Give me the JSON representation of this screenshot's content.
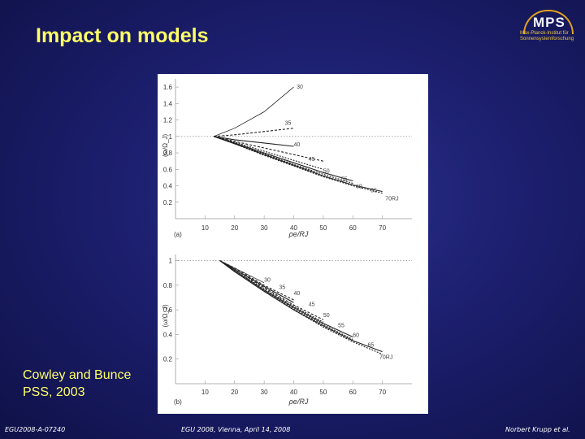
{
  "slide": {
    "title": "Impact on models",
    "caption_line1": "Cowley and Bunce",
    "caption_line2": "PSS, 2003",
    "footer_left": "EGU2008-A-07240",
    "footer_center": "EGU 2008, Vienna, April 14, 2008",
    "footer_right": "Norbert Krupp et al."
  },
  "logo": {
    "name": "MPS",
    "subtitle_line1": "Max-Planck-Institut für",
    "subtitle_line2": "Sonnensystemforschung",
    "ring_color": "#e0a020"
  },
  "chart_data": [
    {
      "type": "line",
      "panel_label": "(a)",
      "ylabel": "(ω/Ω_J)",
      "xlabel": "ρe/RJ",
      "x_ticks": [
        "10",
        "20",
        "30",
        "40",
        "50",
        "60",
        "70"
      ],
      "y_ticks": [
        "0.2",
        "0.4",
        "0.6",
        "0.8",
        "1",
        "1.2",
        "1.4",
        "1.6"
      ],
      "xlim": [
        0,
        80
      ],
      "ylim": [
        0,
        1.7
      ],
      "reference_line": 1,
      "x": [
        13,
        20,
        30,
        40,
        50,
        60,
        70
      ],
      "series": [
        {
          "name": "30",
          "values": [
            1.0,
            1.1,
            1.3,
            1.6,
            null,
            null,
            null
          ]
        },
        {
          "name": "35",
          "values": [
            1.0,
            1.02,
            1.06,
            1.1,
            null,
            null,
            null
          ]
        },
        {
          "name": "40",
          "values": [
            1.0,
            0.96,
            0.92,
            0.88,
            null,
            null,
            null
          ]
        },
        {
          "name": "45",
          "values": [
            1.0,
            0.94,
            0.86,
            0.78,
            0.7,
            null,
            null
          ]
        },
        {
          "name": "50",
          "values": [
            1.0,
            0.93,
            0.82,
            0.71,
            0.6,
            null,
            null
          ]
        },
        {
          "name": "55",
          "values": [
            1.0,
            0.92,
            0.8,
            0.68,
            0.56,
            0.46,
            null
          ]
        },
        {
          "name": "60",
          "values": [
            1.0,
            0.92,
            0.79,
            0.66,
            0.54,
            0.43,
            null
          ]
        },
        {
          "name": "65",
          "values": [
            1.0,
            0.91,
            0.78,
            0.65,
            0.52,
            0.41,
            0.33
          ]
        },
        {
          "name": "70RJ",
          "values": [
            1.0,
            0.91,
            0.77,
            0.64,
            0.51,
            0.4,
            0.31
          ]
        }
      ],
      "curve_labels": [
        {
          "text": "30",
          "x": 41,
          "y": 1.58
        },
        {
          "text": "35",
          "x": 37,
          "y": 1.14
        },
        {
          "text": "40",
          "x": 40,
          "y": 0.88
        },
        {
          "text": "45",
          "x": 45,
          "y": 0.7
        },
        {
          "text": "50",
          "x": 50,
          "y": 0.56
        },
        {
          "text": "55",
          "x": 56,
          "y": 0.46
        },
        {
          "text": "60",
          "x": 61,
          "y": 0.37
        },
        {
          "text": "65",
          "x": 66,
          "y": 0.32
        },
        {
          "text": "70RJ",
          "x": 71,
          "y": 0.22
        }
      ]
    },
    {
      "type": "line",
      "panel_label": "(b)",
      "ylabel": "(ω/Ω_J)",
      "xlabel": "ρe/RJ",
      "x_ticks": [
        "10",
        "20",
        "30",
        "40",
        "50",
        "60",
        "70"
      ],
      "y_ticks": [
        "0.2",
        "0.4",
        "0.6",
        "0.8",
        "1"
      ],
      "xlim": [
        0,
        80
      ],
      "ylim": [
        0,
        1.05
      ],
      "reference_line": 1,
      "x": [
        15,
        20,
        30,
        40,
        50,
        60,
        70
      ],
      "series": [
        {
          "name": "30",
          "values": [
            1.0,
            0.94,
            0.82,
            null,
            null,
            null,
            null
          ]
        },
        {
          "name": "35",
          "values": [
            1.0,
            0.94,
            0.8,
            0.68,
            null,
            null,
            null
          ]
        },
        {
          "name": "40",
          "values": [
            1.0,
            0.93,
            0.79,
            0.66,
            null,
            null,
            null
          ]
        },
        {
          "name": "45",
          "values": [
            1.0,
            0.93,
            0.78,
            0.64,
            0.52,
            null,
            null
          ]
        },
        {
          "name": "50",
          "values": [
            1.0,
            0.92,
            0.77,
            0.63,
            0.5,
            null,
            null
          ]
        },
        {
          "name": "55",
          "values": [
            1.0,
            0.92,
            0.76,
            0.62,
            0.49,
            0.38,
            null
          ]
        },
        {
          "name": "60",
          "values": [
            1.0,
            0.92,
            0.76,
            0.61,
            0.48,
            0.36,
            null
          ]
        },
        {
          "name": "65",
          "values": [
            1.0,
            0.91,
            0.75,
            0.6,
            0.47,
            0.35,
            0.26
          ]
        },
        {
          "name": "70RJ",
          "values": [
            1.0,
            0.91,
            0.75,
            0.6,
            0.46,
            0.34,
            0.24
          ]
        }
      ],
      "curve_labels": [
        {
          "text": "30",
          "x": 30,
          "y": 0.83
        },
        {
          "text": "35",
          "x": 35,
          "y": 0.77
        },
        {
          "text": "40",
          "x": 40,
          "y": 0.72
        },
        {
          "text": "45",
          "x": 45,
          "y": 0.63
        },
        {
          "text": "50",
          "x": 50,
          "y": 0.54
        },
        {
          "text": "55",
          "x": 55,
          "y": 0.46
        },
        {
          "text": "60",
          "x": 60,
          "y": 0.38
        },
        {
          "text": "65",
          "x": 65,
          "y": 0.3
        },
        {
          "text": "70RJ",
          "x": 69,
          "y": 0.2
        }
      ]
    }
  ]
}
